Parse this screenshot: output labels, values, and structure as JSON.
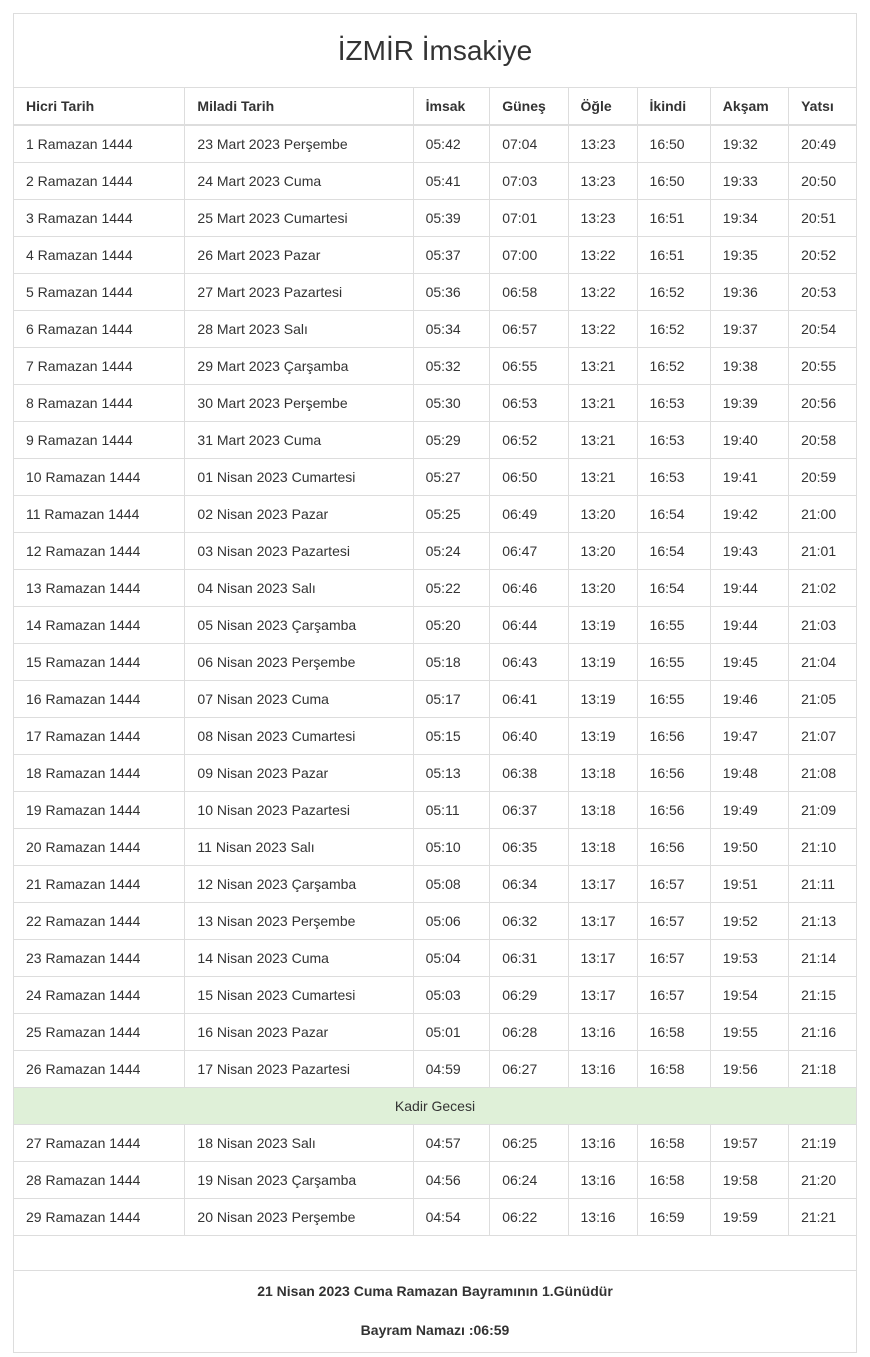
{
  "title": "İZMİR İmsakiye",
  "table": {
    "columns": [
      "Hicri Tarih",
      "Miladi Tarih",
      "İmsak",
      "Güneş",
      "Öğle",
      "İkindi",
      "Akşam",
      "Yatsı"
    ],
    "rows": [
      {
        "cells": [
          "1 Ramazan 1444",
          "23 Mart 2023 Perşembe",
          "05:42",
          "07:04",
          "13:23",
          "16:50",
          "19:32",
          "20:49"
        ]
      },
      {
        "cells": [
          "2 Ramazan 1444",
          "24 Mart 2023 Cuma",
          "05:41",
          "07:03",
          "13:23",
          "16:50",
          "19:33",
          "20:50"
        ]
      },
      {
        "cells": [
          "3 Ramazan 1444",
          "25 Mart 2023 Cumartesi",
          "05:39",
          "07:01",
          "13:23",
          "16:51",
          "19:34",
          "20:51"
        ]
      },
      {
        "cells": [
          "4 Ramazan 1444",
          "26 Mart 2023 Pazar",
          "05:37",
          "07:00",
          "13:22",
          "16:51",
          "19:35",
          "20:52"
        ]
      },
      {
        "cells": [
          "5 Ramazan 1444",
          "27 Mart 2023 Pazartesi",
          "05:36",
          "06:58",
          "13:22",
          "16:52",
          "19:36",
          "20:53"
        ]
      },
      {
        "cells": [
          "6 Ramazan 1444",
          "28 Mart 2023 Salı",
          "05:34",
          "06:57",
          "13:22",
          "16:52",
          "19:37",
          "20:54"
        ]
      },
      {
        "cells": [
          "7 Ramazan 1444",
          "29 Mart 2023 Çarşamba",
          "05:32",
          "06:55",
          "13:21",
          "16:52",
          "19:38",
          "20:55"
        ]
      },
      {
        "cells": [
          "8 Ramazan 1444",
          "30 Mart 2023 Perşembe",
          "05:30",
          "06:53",
          "13:21",
          "16:53",
          "19:39",
          "20:56"
        ]
      },
      {
        "cells": [
          "9 Ramazan 1444",
          "31 Mart 2023 Cuma",
          "05:29",
          "06:52",
          "13:21",
          "16:53",
          "19:40",
          "20:58"
        ]
      },
      {
        "cells": [
          "10 Ramazan 1444",
          "01 Nisan 2023 Cumartesi",
          "05:27",
          "06:50",
          "13:21",
          "16:53",
          "19:41",
          "20:59"
        ]
      },
      {
        "cells": [
          "11 Ramazan 1444",
          "02 Nisan 2023 Pazar",
          "05:25",
          "06:49",
          "13:20",
          "16:54",
          "19:42",
          "21:00"
        ]
      },
      {
        "cells": [
          "12 Ramazan 1444",
          "03 Nisan 2023 Pazartesi",
          "05:24",
          "06:47",
          "13:20",
          "16:54",
          "19:43",
          "21:01"
        ]
      },
      {
        "cells": [
          "13 Ramazan 1444",
          "04 Nisan 2023 Salı",
          "05:22",
          "06:46",
          "13:20",
          "16:54",
          "19:44",
          "21:02"
        ]
      },
      {
        "cells": [
          "14 Ramazan 1444",
          "05 Nisan 2023 Çarşamba",
          "05:20",
          "06:44",
          "13:19",
          "16:55",
          "19:44",
          "21:03"
        ]
      },
      {
        "cells": [
          "15 Ramazan 1444",
          "06 Nisan 2023 Perşembe",
          "05:18",
          "06:43",
          "13:19",
          "16:55",
          "19:45",
          "21:04"
        ]
      },
      {
        "cells": [
          "16 Ramazan 1444",
          "07 Nisan 2023 Cuma",
          "05:17",
          "06:41",
          "13:19",
          "16:55",
          "19:46",
          "21:05"
        ]
      },
      {
        "cells": [
          "17 Ramazan 1444",
          "08 Nisan 2023 Cumartesi",
          "05:15",
          "06:40",
          "13:19",
          "16:56",
          "19:47",
          "21:07"
        ]
      },
      {
        "cells": [
          "18 Ramazan 1444",
          "09 Nisan 2023 Pazar",
          "05:13",
          "06:38",
          "13:18",
          "16:56",
          "19:48",
          "21:08"
        ]
      },
      {
        "cells": [
          "19 Ramazan 1444",
          "10 Nisan 2023 Pazartesi",
          "05:11",
          "06:37",
          "13:18",
          "16:56",
          "19:49",
          "21:09"
        ]
      },
      {
        "cells": [
          "20 Ramazan 1444",
          "11 Nisan 2023 Salı",
          "05:10",
          "06:35",
          "13:18",
          "16:56",
          "19:50",
          "21:10"
        ]
      },
      {
        "cells": [
          "21 Ramazan 1444",
          "12 Nisan 2023 Çarşamba",
          "05:08",
          "06:34",
          "13:17",
          "16:57",
          "19:51",
          "21:11"
        ]
      },
      {
        "cells": [
          "22 Ramazan 1444",
          "13 Nisan 2023 Perşembe",
          "05:06",
          "06:32",
          "13:17",
          "16:57",
          "19:52",
          "21:13"
        ]
      },
      {
        "cells": [
          "23 Ramazan 1444",
          "14 Nisan 2023 Cuma",
          "05:04",
          "06:31",
          "13:17",
          "16:57",
          "19:53",
          "21:14"
        ]
      },
      {
        "cells": [
          "24 Ramazan 1444",
          "15 Nisan 2023 Cumartesi",
          "05:03",
          "06:29",
          "13:17",
          "16:57",
          "19:54",
          "21:15"
        ]
      },
      {
        "cells": [
          "25 Ramazan 1444",
          "16 Nisan 2023 Pazar",
          "05:01",
          "06:28",
          "13:16",
          "16:58",
          "19:55",
          "21:16"
        ]
      },
      {
        "cells": [
          "26 Ramazan 1444",
          "17 Nisan 2023 Pazartesi",
          "04:59",
          "06:27",
          "13:16",
          "16:58",
          "19:56",
          "21:18"
        ]
      },
      {
        "special": "Kadir Gecesi"
      },
      {
        "cells": [
          "27 Ramazan 1444",
          "18 Nisan 2023 Salı",
          "04:57",
          "06:25",
          "13:16",
          "16:58",
          "19:57",
          "21:19"
        ]
      },
      {
        "cells": [
          "28 Ramazan 1444",
          "19 Nisan 2023 Çarşamba",
          "04:56",
          "06:24",
          "13:16",
          "16:58",
          "19:58",
          "21:20"
        ]
      },
      {
        "cells": [
          "29 Ramazan 1444",
          "20 Nisan 2023 Perşembe",
          "04:54",
          "06:22",
          "13:16",
          "16:59",
          "19:59",
          "21:21"
        ]
      }
    ]
  },
  "footer": {
    "line1": "21 Nisan 2023 Cuma Ramazan Bayramının 1.Günüdür",
    "line2": "Bayram Namazı :06:59"
  },
  "colors": {
    "border": "#dddddd",
    "text": "#333333",
    "special_row_bg": "#dff0d8"
  }
}
